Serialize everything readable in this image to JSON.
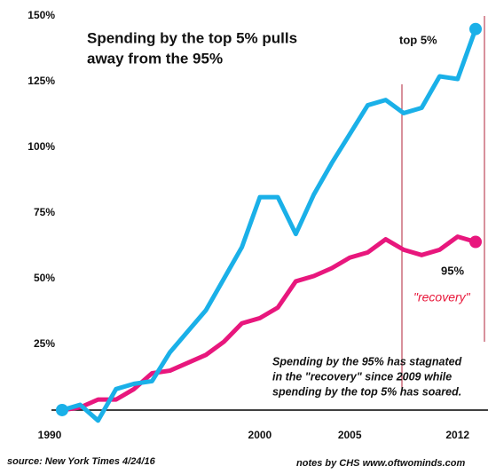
{
  "chart_data": {
    "type": "line",
    "title": [
      "Spending by the top 5% pulls",
      "away from the 95%"
    ],
    "categories": [
      "1990",
      null,
      null,
      null,
      null,
      null,
      null,
      null,
      null,
      null,
      null,
      "2000",
      null,
      null,
      null,
      null,
      "2005",
      null,
      null,
      null,
      null,
      null,
      "2012",
      null
    ],
    "series": [
      {
        "name": "top 5%",
        "color": "#1ab0e8",
        "values": [
          0,
          2,
          -4,
          8,
          10,
          11,
          22,
          30,
          38,
          50,
          62,
          81,
          81,
          67,
          82,
          94,
          105,
          116,
          118,
          113,
          115,
          127,
          126,
          145
        ]
      },
      {
        "name": "95%",
        "color": "#e8177d",
        "values": [
          0,
          1,
          4,
          4,
          8,
          14,
          15,
          18,
          21,
          26,
          33,
          35,
          39,
          49,
          51,
          54,
          58,
          60,
          65,
          61,
          59,
          61,
          66,
          64
        ]
      }
    ],
    "ylim": [
      -12,
      152
    ],
    "yticks": [
      {
        "value": 25,
        "label": "25%"
      },
      {
        "value": 50,
        "label": "50%"
      },
      {
        "value": 75,
        "label": "75%"
      },
      {
        "value": 100,
        "label": "100%"
      },
      {
        "value": 125,
        "label": "125%"
      },
      {
        "value": 150,
        "label": "150%"
      }
    ],
    "annotations": {
      "recovery": "\"recovery\"",
      "note": [
        "Spending by the 95% has stagnated",
        "in the \"recovery\" since 2009 while",
        "spending by the top 5% has soared."
      ]
    },
    "source": "source: New York Times 4/24/16",
    "credit": "notes by CHS  www.oftwominds.com"
  }
}
